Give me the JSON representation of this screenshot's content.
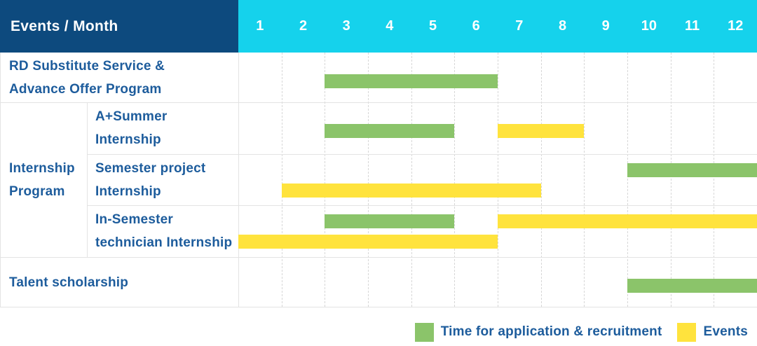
{
  "header": {
    "title": "Events / Month",
    "months": [
      "1",
      "2",
      "3",
      "4",
      "5",
      "6",
      "7",
      "8",
      "9",
      "10",
      "11",
      "12"
    ]
  },
  "colors": {
    "navy": "#0d4a7e",
    "cyan": "#15d2ec",
    "green": "#8bc46a",
    "yellow": "#ffe33d",
    "text_blue": "#1d5c9c"
  },
  "group": {
    "id": "internship-program",
    "label_lines": [
      "Internship",
      "Program"
    ]
  },
  "rows": [
    {
      "id": "rd-substitute-service",
      "label_lines": [
        "RD Substitute Service &",
        "Advance Offer Program"
      ],
      "sub": false,
      "bar_lines": 1,
      "bars": [
        {
          "color": "green",
          "start": 3,
          "end": 6,
          "line": 0
        }
      ]
    },
    {
      "id": "a-plus-summer-internship",
      "label_lines": [
        "A+Summer",
        "Internship"
      ],
      "sub": true,
      "bar_lines": 1,
      "bars": [
        {
          "color": "green",
          "start": 3,
          "end": 5,
          "line": 0
        },
        {
          "color": "yellow",
          "start": 7,
          "end": 8,
          "line": 0
        }
      ]
    },
    {
      "id": "semester-project-internship",
      "label_lines": [
        "Semester project",
        "Internship"
      ],
      "sub": true,
      "bar_lines": 2,
      "bars": [
        {
          "color": "green",
          "start": 10,
          "end": 12,
          "line": 0
        },
        {
          "color": "yellow",
          "start": 2,
          "end": 7,
          "line": 1
        }
      ]
    },
    {
      "id": "in-semester-technician-internship",
      "label_lines": [
        "In-Semester",
        "technician Internship"
      ],
      "sub": true,
      "bar_lines": 2,
      "bars": [
        {
          "color": "green",
          "start": 3,
          "end": 5,
          "line": 0
        },
        {
          "color": "yellow",
          "start": 7,
          "end": 12,
          "line": 0
        },
        {
          "color": "yellow",
          "start": 1,
          "end": 6,
          "line": 1
        }
      ]
    },
    {
      "id": "talent-scholarship",
      "label_lines": [
        "Talent scholarship"
      ],
      "sub": false,
      "bar_lines": 1,
      "bars": [
        {
          "color": "green",
          "start": 10,
          "end": 12,
          "line": 0
        }
      ]
    }
  ],
  "legend": [
    {
      "color": "green",
      "label": "Time for application & recruitment"
    },
    {
      "color": "yellow",
      "label": "Events"
    }
  ],
  "chart_data": {
    "type": "table",
    "subtype": "gantt",
    "title": "Events / Month",
    "x_categories": [
      1,
      2,
      3,
      4,
      5,
      6,
      7,
      8,
      9,
      10,
      11,
      12
    ],
    "xlabel": "Month",
    "grid": true,
    "legend_position": "bottom-right",
    "rows": [
      {
        "group": null,
        "name": "RD Substitute Service & Advance Offer Program",
        "application_recruitment_month_spans": [
          [
            3,
            6
          ]
        ],
        "events_month_spans": []
      },
      {
        "group": "Internship Program",
        "name": "A+Summer Internship",
        "application_recruitment_month_spans": [
          [
            3,
            5
          ]
        ],
        "events_month_spans": [
          [
            7,
            8
          ]
        ]
      },
      {
        "group": "Internship Program",
        "name": "Semester project Internship",
        "application_recruitment_month_spans": [
          [
            10,
            12
          ]
        ],
        "events_month_spans": [
          [
            2,
            7
          ]
        ]
      },
      {
        "group": "Internship Program",
        "name": "In-Semester technician Internship",
        "application_recruitment_month_spans": [
          [
            3,
            5
          ]
        ],
        "events_month_spans": [
          [
            1,
            6
          ],
          [
            7,
            12
          ]
        ]
      },
      {
        "group": null,
        "name": "Talent scholarship",
        "application_recruitment_month_spans": [
          [
            10,
            12
          ]
        ],
        "events_month_spans": []
      }
    ],
    "series_legend": [
      {
        "name": "Time for application & recruitment",
        "color": "#8bc46a"
      },
      {
        "name": "Events",
        "color": "#ffe33d"
      }
    ]
  }
}
